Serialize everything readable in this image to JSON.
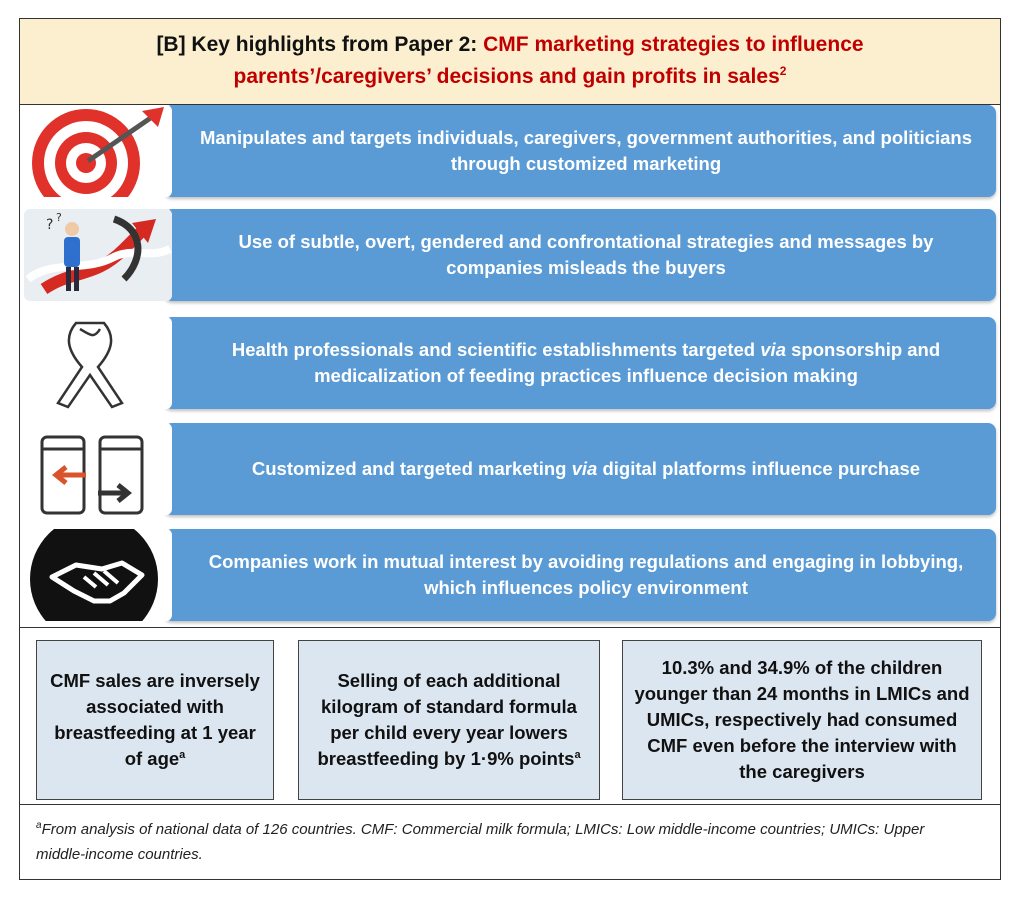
{
  "header": {
    "prefix": "[B] Key highlights from Paper 2: ",
    "title_red_line1": "CMF marketing strategies to influence",
    "title_red_line2": "parents’/caregivers’ decisions and gain profits in sales",
    "title_superscript": "2"
  },
  "strategies": [
    {
      "icon": "target-dart-icon",
      "text": "Manipulates and targets individuals, caregivers, government authorities, and politicians through customized marketing"
    },
    {
      "icon": "confused-person-arrows-icon",
      "text": "Use of subtle, overt, gendered and confrontational strategies and messages by companies misleads the buyers"
    },
    {
      "icon": "awareness-ribbon-icon",
      "text_before": "Health professionals and scientific establishments targeted ",
      "text_italic": "via",
      "text_after": " sponsorship and medicalization of feeding practices influence decision making"
    },
    {
      "icon": "digital-transfer-icon",
      "text_before": "Customized and targeted marketing ",
      "text_italic": "via",
      "text_after": " digital platforms influence purchase"
    },
    {
      "icon": "handshake-icon",
      "text": "Companies work in mutual interest by avoiding regulations and engaging in lobbying, which influences policy environment"
    }
  ],
  "stats": [
    {
      "text": "CMF sales are inversely associated with breastfeeding at 1 year of age",
      "sup": "a"
    },
    {
      "text": "Selling of each additional kilogram of standard formula per child every year lowers breastfeeding by 1·9% points",
      "sup": "a"
    },
    {
      "text": "10.3% and 34.9% of the children younger than 24 months in LMICs and UMICs, respectively had consumed CMF even before the interview with the caregivers"
    }
  ],
  "footnote": {
    "sup": "a",
    "text": "From analysis of national data of 126 countries. CMF: Commercial milk formula; LMICs: Low middle-income countries; UMICs: Upper middle-income countries."
  },
  "colors": {
    "band": "#5b9bd5",
    "header_bg": "#fcefcf",
    "title_red": "#c00000",
    "stat_bg": "#dce6f1"
  }
}
